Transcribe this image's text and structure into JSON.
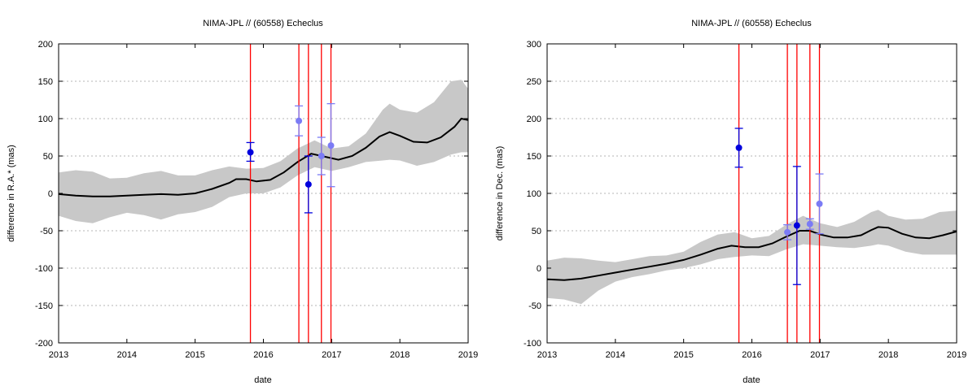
{
  "chart_data": [
    {
      "type": "line",
      "title": "NIMA-JPL // (60558) Echeclus",
      "xlabel": "date",
      "ylabel": "difference in R.A.* (mas)",
      "xlim": [
        2013,
        2019
      ],
      "ylim": [
        -200,
        200
      ],
      "xticks": [
        "2013",
        "2014",
        "2015",
        "2016",
        "2017",
        "2018",
        "2019"
      ],
      "yticks": [
        "-200",
        "-150",
        "-100",
        "-50",
        "0",
        "50",
        "100",
        "150",
        "200"
      ],
      "ytick_values": [
        -200,
        -150,
        -100,
        -50,
        0,
        50,
        100,
        150,
        200
      ],
      "grid": "horizontal dotted",
      "colors": {
        "model": "#000000",
        "band": "#c8c8c8",
        "vline": "#ff0000",
        "point_dark": "#0000dd",
        "point_light": "#7b7bf5"
      },
      "model_curve": {
        "x": [
          2013.0,
          2013.25,
          2013.5,
          2013.75,
          2014.0,
          2014.25,
          2014.5,
          2014.75,
          2015.0,
          2015.25,
          2015.5,
          2015.6,
          2015.75,
          2015.9,
          2016.1,
          2016.3,
          2016.5,
          2016.7,
          2016.9,
          2017.1,
          2017.3,
          2017.5,
          2017.7,
          2017.85,
          2018.0,
          2018.2,
          2018.4,
          2018.6,
          2018.8,
          2018.9,
          2019.0
        ],
        "y": [
          -1,
          -3,
          -4,
          -4,
          -3,
          -2,
          -1,
          -2,
          0,
          6,
          14,
          19,
          19,
          16,
          18,
          28,
          42,
          53,
          49,
          45,
          50,
          61,
          76,
          82,
          77,
          69,
          68,
          75,
          89,
          100,
          98
        ]
      },
      "uncertainty_band": {
        "x": [
          2013.0,
          2013.25,
          2013.5,
          2013.75,
          2014.0,
          2014.25,
          2014.5,
          2014.75,
          2015.0,
          2015.25,
          2015.5,
          2015.75,
          2016.0,
          2016.25,
          2016.5,
          2016.75,
          2017.0,
          2017.25,
          2017.5,
          2017.75,
          2017.85,
          2018.0,
          2018.25,
          2018.5,
          2018.75,
          2018.9,
          2019.0
        ],
        "upper": [
          28,
          31,
          29,
          20,
          21,
          27,
          30,
          24,
          24,
          31,
          36,
          33,
          34,
          43,
          60,
          71,
          60,
          63,
          80,
          112,
          120,
          112,
          108,
          122,
          150,
          152,
          140
        ],
        "lower": [
          -30,
          -37,
          -40,
          -32,
          -26,
          -29,
          -35,
          -28,
          -25,
          -18,
          -5,
          0,
          0,
          8,
          24,
          35,
          30,
          35,
          42,
          44,
          45,
          44,
          37,
          42,
          52,
          55,
          55
        ]
      },
      "vertical_lines": [
        2015.81,
        2016.52,
        2016.66,
        2016.85,
        2016.99
      ],
      "points": [
        {
          "x": 2015.81,
          "y": 55,
          "err_low": 43,
          "err_high": 68,
          "shade": "dark"
        },
        {
          "x": 2016.52,
          "y": 97,
          "err_low": 77,
          "err_high": 117,
          "shade": "light"
        },
        {
          "x": 2016.66,
          "y": 12,
          "err_low": -26,
          "err_high": 50,
          "shade": "dark"
        },
        {
          "x": 2016.85,
          "y": 50,
          "err_low": 25,
          "err_high": 75,
          "shade": "light"
        },
        {
          "x": 2016.99,
          "y": 64,
          "err_low": 9,
          "err_high": 120,
          "shade": "light"
        }
      ]
    },
    {
      "type": "line",
      "title": "NIMA-JPL // (60558) Echeclus",
      "xlabel": "date",
      "ylabel": "difference in Dec. (mas)",
      "xlim": [
        2013,
        2019
      ],
      "ylim": [
        -100,
        300
      ],
      "xticks": [
        "2013",
        "2014",
        "2015",
        "2016",
        "2017",
        "2018",
        "2019"
      ],
      "yticks": [
        "-100",
        "-50",
        "0",
        "50",
        "100",
        "150",
        "200",
        "250",
        "300"
      ],
      "ytick_values": [
        -100,
        -50,
        0,
        50,
        100,
        150,
        200,
        250,
        300
      ],
      "grid": "horizontal dotted",
      "colors": {
        "model": "#000000",
        "band": "#c8c8c8",
        "vline": "#ff0000",
        "point_dark": "#0000dd",
        "point_light": "#7b7bf5"
      },
      "model_curve": {
        "x": [
          2013.0,
          2013.25,
          2013.5,
          2013.75,
          2014.0,
          2014.25,
          2014.5,
          2014.75,
          2015.0,
          2015.25,
          2015.5,
          2015.7,
          2015.9,
          2016.1,
          2016.3,
          2016.5,
          2016.7,
          2016.85,
          2017.0,
          2017.2,
          2017.4,
          2017.6,
          2017.75,
          2017.85,
          2018.0,
          2018.2,
          2018.4,
          2018.6,
          2018.8,
          2019.0
        ],
        "y": [
          -15,
          -16,
          -14,
          -10,
          -6,
          -2,
          2,
          6,
          11,
          18,
          26,
          30,
          28,
          28,
          33,
          42,
          50,
          50,
          45,
          41,
          41,
          44,
          51,
          55,
          54,
          46,
          41,
          40,
          44,
          49
        ]
      },
      "uncertainty_band": {
        "x": [
          2013.0,
          2013.25,
          2013.5,
          2013.75,
          2014.0,
          2014.25,
          2014.5,
          2014.75,
          2015.0,
          2015.25,
          2015.5,
          2015.75,
          2016.0,
          2016.25,
          2016.5,
          2016.75,
          2017.0,
          2017.25,
          2017.5,
          2017.75,
          2017.85,
          2018.0,
          2018.25,
          2018.5,
          2018.75,
          2019.0
        ],
        "upper": [
          10,
          14,
          13,
          10,
          8,
          12,
          16,
          17,
          22,
          35,
          45,
          48,
          40,
          43,
          58,
          70,
          60,
          55,
          62,
          75,
          78,
          70,
          65,
          66,
          75,
          77
        ],
        "lower": [
          -40,
          -42,
          -48,
          -30,
          -18,
          -12,
          -8,
          -3,
          0,
          5,
          12,
          15,
          17,
          16,
          25,
          32,
          30,
          28,
          27,
          30,
          32,
          30,
          22,
          18,
          18,
          18
        ]
      },
      "vertical_lines": [
        2015.81,
        2016.52,
        2016.66,
        2016.85,
        2016.99
      ],
      "points": [
        {
          "x": 2015.81,
          "y": 161,
          "err_low": 135,
          "err_high": 187,
          "shade": "dark"
        },
        {
          "x": 2016.52,
          "y": 48,
          "err_low": 38,
          "err_high": 58,
          "shade": "light"
        },
        {
          "x": 2016.66,
          "y": 57,
          "err_low": -22,
          "err_high": 136,
          "shade": "dark"
        },
        {
          "x": 2016.85,
          "y": 59,
          "err_low": 52,
          "err_high": 66,
          "shade": "light"
        },
        {
          "x": 2016.99,
          "y": 86,
          "err_low": 46,
          "err_high": 126,
          "shade": "light"
        }
      ]
    }
  ]
}
